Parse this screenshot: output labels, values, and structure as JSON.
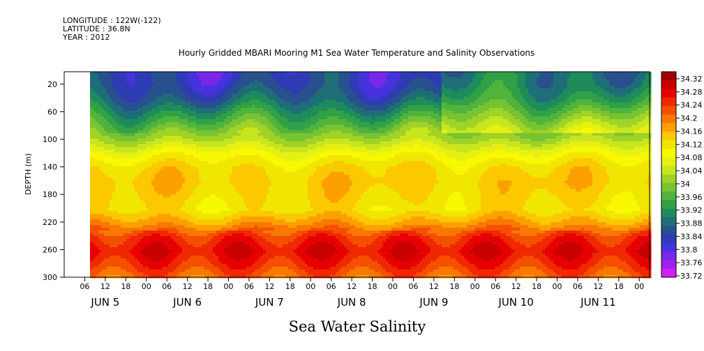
{
  "header": {
    "longitude": "LONGITUDE : 122W(-122)",
    "latitude": "LATITUDE : 36.8N",
    "year": "YEAR : 2012"
  },
  "chart_data": {
    "type": "heatmap",
    "title": "Hourly Gridded MBARI Mooring M1 Sea Water Temperature and Salinity Observations",
    "subtitle": "Sea Water Salinity",
    "xlabel": "",
    "ylabel": "DEPTH (m)",
    "yaxis": {
      "ticks": [
        20,
        60,
        100,
        140,
        180,
        220,
        260,
        300
      ],
      "range": [
        300,
        2
      ],
      "reversed": true
    },
    "xaxis": {
      "hour_ticks": [
        "06",
        "12",
        "18",
        "00",
        "06",
        "12",
        "18",
        "00",
        "06",
        "12",
        "18",
        "00",
        "06",
        "12",
        "18",
        "00",
        "06",
        "12",
        "18",
        "00",
        "06",
        "12",
        "18",
        "00",
        "06",
        "12",
        "18",
        "00"
      ],
      "day_labels": [
        "JUN 5",
        "JUN 6",
        "JUN 7",
        "JUN 8",
        "JUN 9",
        "JUN 10",
        "JUN 11"
      ],
      "range": [
        "2012-06-05 00:00",
        "2012-06-12 03:00"
      ],
      "data_start": "2012-06-05 09:00"
    },
    "colorbar": {
      "levels": [
        "34.32",
        "34.28",
        "34.24",
        "34.2",
        "34.16",
        "34.12",
        "34.08",
        "34.04",
        "34",
        "33.96",
        "33.92",
        "33.88",
        "33.84",
        "33.8",
        "33.76",
        "33.72"
      ],
      "colors": [
        "#a00000",
        "#c80000",
        "#e60000",
        "#f02800",
        "#f45000",
        "#f87800",
        "#fca000",
        "#fcc800",
        "#f0e600",
        "#f8f800",
        "#e6f014",
        "#c8e61e",
        "#a0d228",
        "#78c332",
        "#50b43c",
        "#32a046",
        "#1e8c5a",
        "#1e6e78",
        "#28508c",
        "#2d3cb4",
        "#4632dc",
        "#7828e6",
        "#a01ef0",
        "#d21ef5"
      ],
      "boundaries": [
        34.32,
        34.28,
        34.24,
        34.2,
        34.16,
        34.12,
        34.08,
        34.04,
        34,
        33.96,
        33.92,
        33.88,
        33.84,
        33.8,
        33.76,
        33.72
      ],
      "note": ""
    },
    "profile": {
      "depths": [
        2,
        20,
        40,
        60,
        80,
        100,
        120,
        140,
        160,
        180,
        200,
        220,
        240,
        260,
        280,
        300
      ],
      "salinity": [
        33.83,
        33.84,
        33.87,
        33.92,
        33.97,
        34.02,
        34.08,
        34.12,
        34.13,
        34.12,
        34.11,
        34.16,
        34.23,
        34.26,
        34.23,
        34.19
      ]
    }
  }
}
